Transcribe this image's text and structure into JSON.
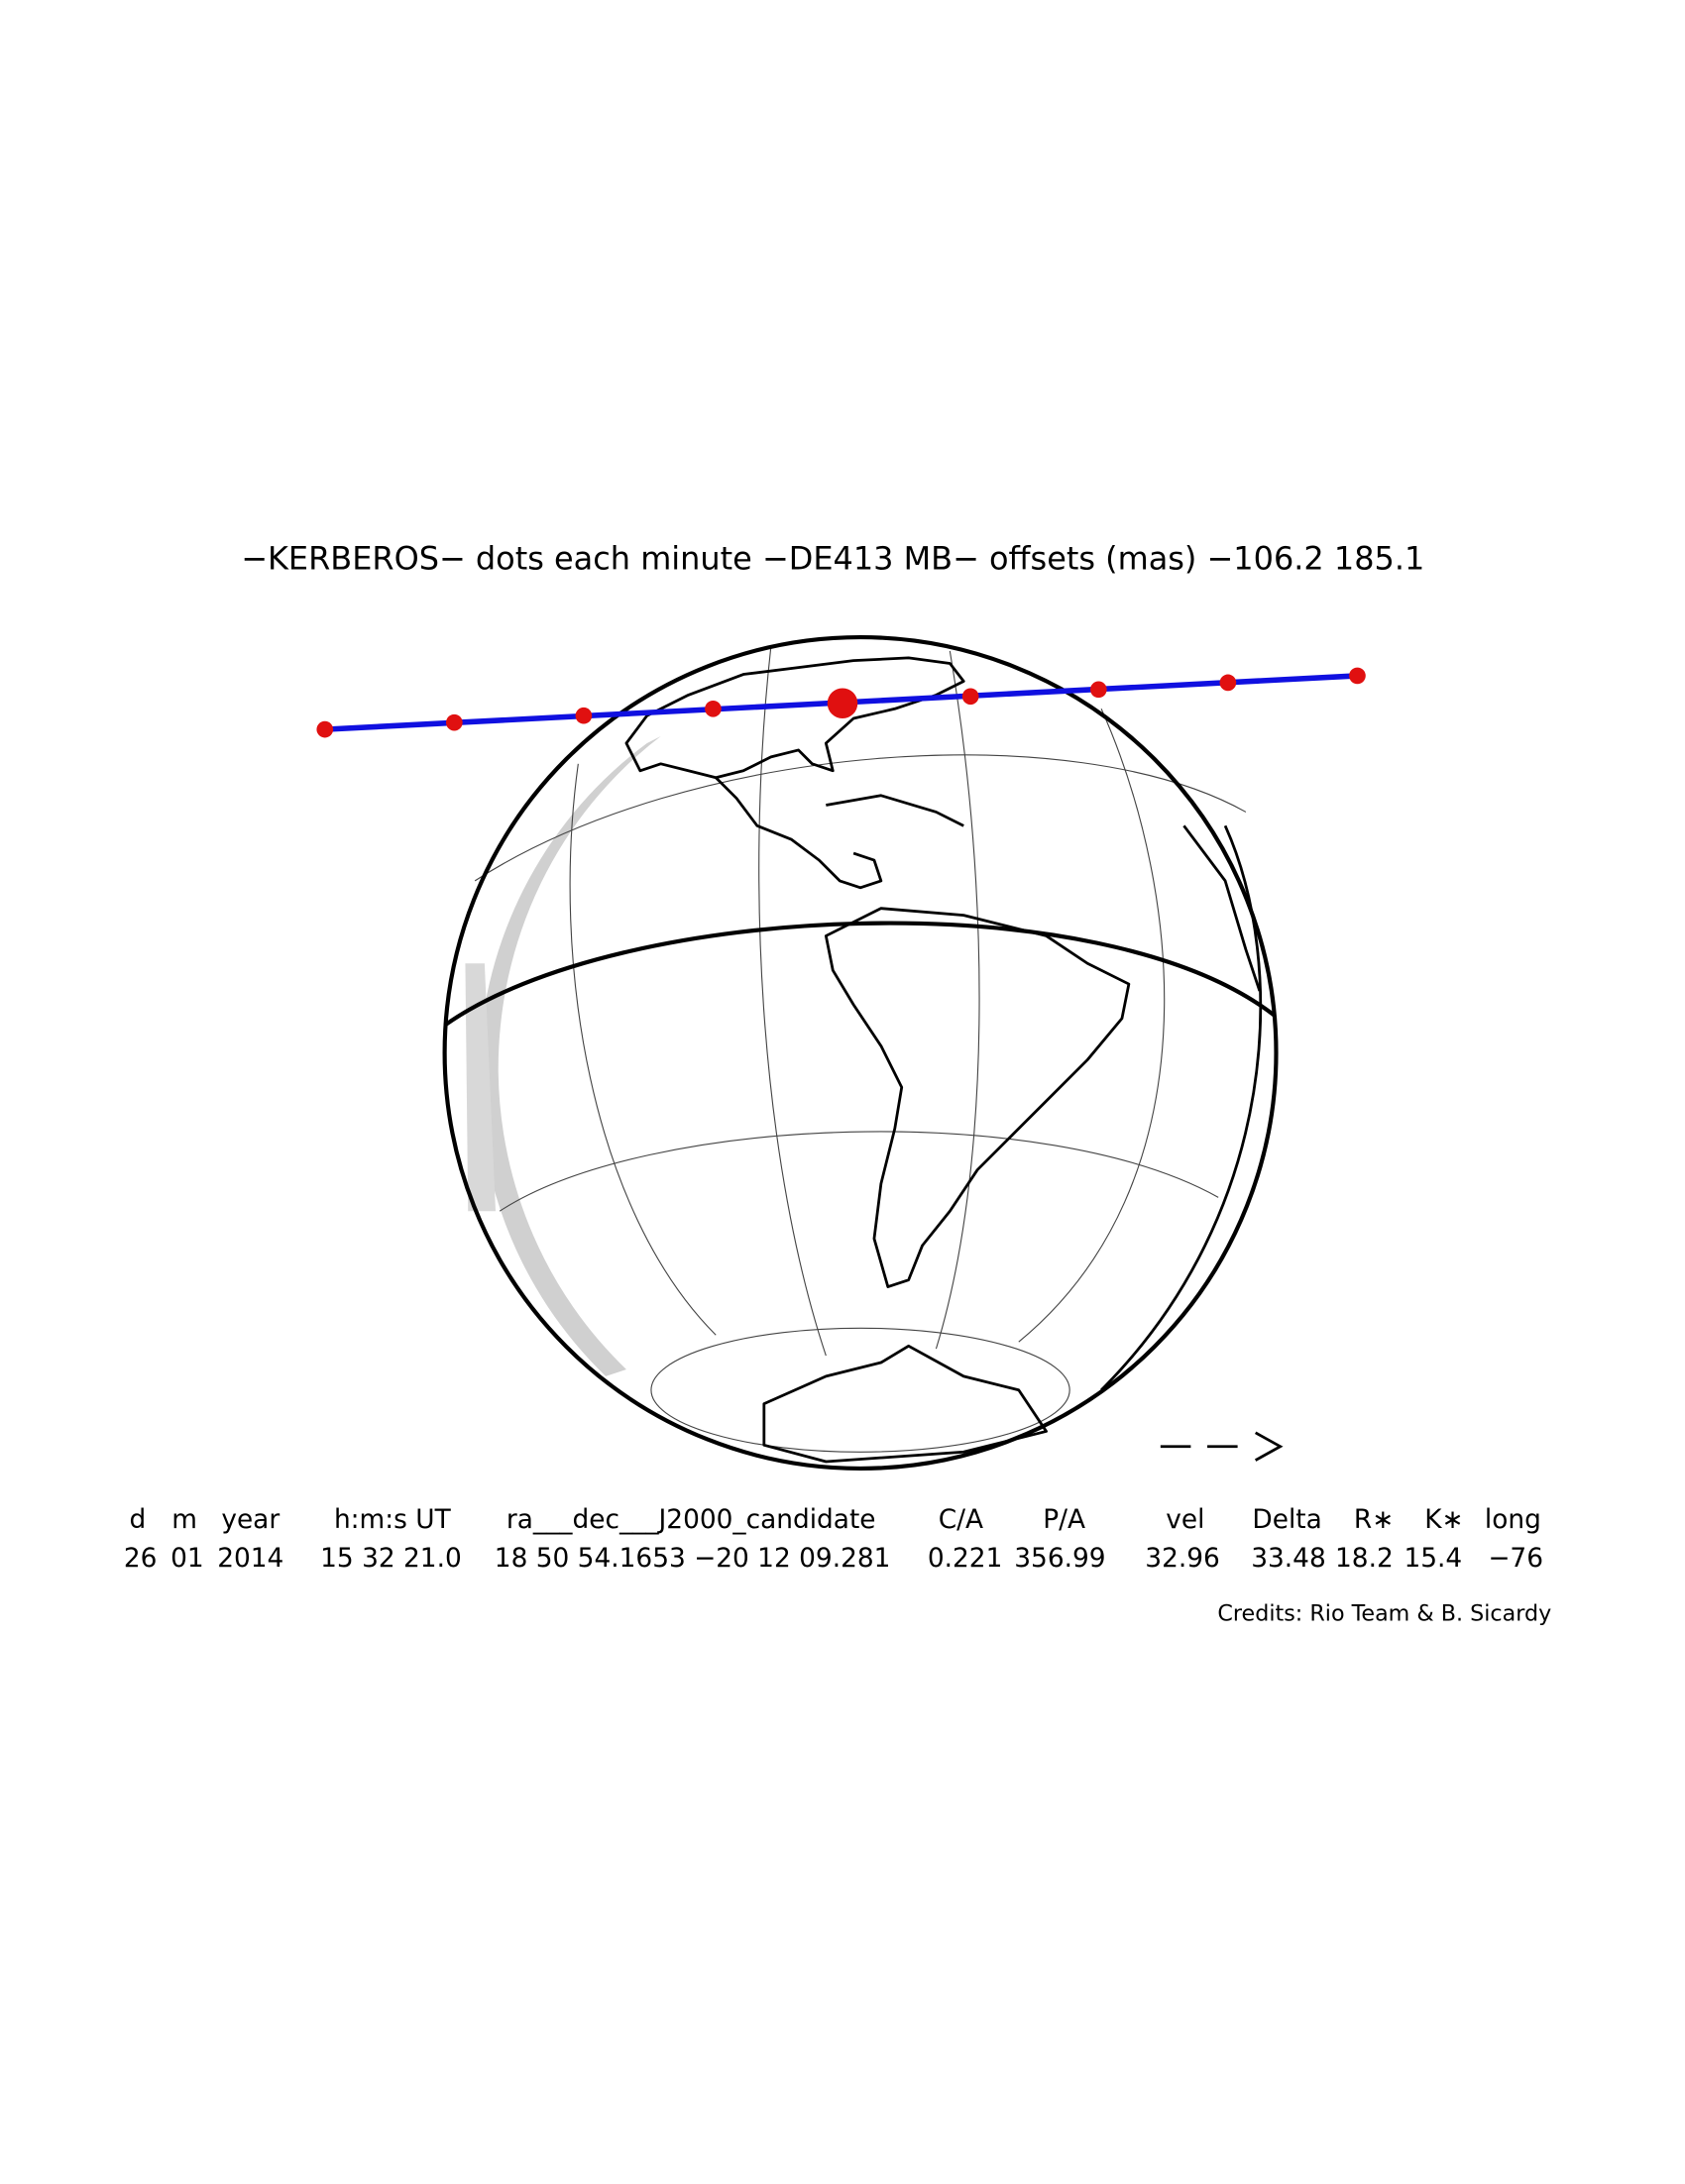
{
  "title": "−KERBEROS− dots each minute −DE413 MB− offsets (mas) −106.2  185.1",
  "table": {
    "header": [
      "d",
      "m",
      "year",
      "h:m:s UT",
      "ra___dec___J2000_candidate",
      "C/A",
      "P/A",
      "vel",
      "Delta",
      "R∗",
      "K∗",
      "long"
    ],
    "values": [
      "26",
      "01",
      "2014",
      "15 32 21.0",
      "18 50 54.1653 −20 12 09.281",
      "0.221",
      "356.99",
      "32.96",
      "33.48",
      "18.2",
      "15.4",
      "−76"
    ]
  },
  "credits": "Credits: Rio Team & B. Sicardy"
}
